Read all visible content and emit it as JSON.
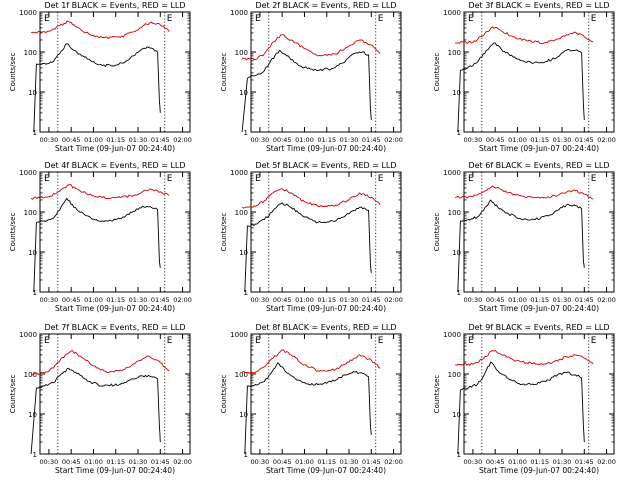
{
  "chart_data": [
    {
      "type": "line",
      "title": "Det 1f BLACK = Events, RED = LLD",
      "xlabel": "Start Time (09-Jun-07 00:24:40)",
      "ylabel": "Counts/sec",
      "xticks": [
        "00:30",
        "00:45",
        "01:00",
        "01:15",
        "01:30",
        "01:45",
        "02:00"
      ],
      "yticks": [
        "1",
        "10",
        "100",
        "1000"
      ],
      "ylim": [
        1,
        1000
      ],
      "yscale": "log",
      "markers": [
        "E",
        "E"
      ],
      "vlines": [
        "00:36",
        "01:48"
      ],
      "series": [
        {
          "name": "Events",
          "color": "#000000",
          "x": [
            0.33,
            0.36,
            0.45,
            0.55,
            0.62,
            0.7,
            0.78,
            0.9,
            1.05,
            1.2,
            1.35,
            1.45,
            1.55,
            1.62,
            1.67,
            1.72,
            1.74,
            1.75
          ],
          "y": [
            1,
            50,
            52,
            58,
            90,
            160,
            110,
            75,
            48,
            45,
            55,
            80,
            120,
            130,
            120,
            100,
            6,
            3
          ]
        },
        {
          "name": "LLD",
          "color": "#d00000",
          "x": [
            0.3,
            0.5,
            0.62,
            0.72,
            0.8,
            0.95,
            1.1,
            1.3,
            1.45,
            1.55,
            1.65,
            1.75,
            1.8,
            1.85
          ],
          "y": [
            300,
            330,
            450,
            580,
            430,
            280,
            230,
            230,
            320,
            440,
            560,
            480,
            400,
            320
          ]
        }
      ]
    },
    {
      "type": "line",
      "title": "Det 2f BLACK = Events, RED = LLD",
      "xlabel": "Start Time (09-Jun-07 00:24:40)",
      "ylabel": "Counts/sec",
      "xticks": [
        "00:30",
        "00:45",
        "01:00",
        "01:15",
        "01:30",
        "01:45",
        "02:00"
      ],
      "yticks": [
        "1",
        "10",
        "100",
        "1000"
      ],
      "ylim": [
        1,
        1000
      ],
      "yscale": "log",
      "markers": [
        "E",
        "E"
      ],
      "vlines": [
        "00:36",
        "01:48"
      ],
      "series": [
        {
          "name": "Events",
          "color": "#000000",
          "x": [
            0.3,
            0.36,
            0.45,
            0.55,
            0.62,
            0.72,
            0.8,
            0.95,
            1.1,
            1.3,
            1.45,
            1.55,
            1.65,
            1.72,
            1.74,
            1.75
          ],
          "y": [
            1,
            22,
            26,
            34,
            60,
            110,
            80,
            45,
            35,
            38,
            55,
            90,
            100,
            85,
            4,
            2
          ]
        },
        {
          "name": "LLD",
          "color": "#d00000",
          "x": [
            0.3,
            0.45,
            0.55,
            0.65,
            0.75,
            0.85,
            1.0,
            1.15,
            1.35,
            1.5,
            1.62,
            1.75,
            1.85
          ],
          "y": [
            70,
            65,
            90,
            180,
            270,
            200,
            120,
            80,
            90,
            140,
            200,
            150,
            90
          ]
        }
      ]
    },
    {
      "type": "line",
      "title": "Det 3f BLACK = Events, RED = LLD",
      "xlabel": "Start Time (09-Jun-07 00:24:40)",
      "ylabel": "Counts/sec",
      "xticks": [
        "00:30",
        "00:45",
        "01:00",
        "01:15",
        "01:30",
        "01:45",
        "02:00"
      ],
      "yticks": [
        "1",
        "10",
        "100",
        "1000"
      ],
      "ylim": [
        1,
        1000
      ],
      "yscale": "log",
      "markers": [
        "E",
        "E"
      ],
      "vlines": [
        "00:36",
        "01:48"
      ],
      "series": [
        {
          "name": "Events",
          "color": "#000000",
          "x": [
            0.33,
            0.36,
            0.45,
            0.55,
            0.65,
            0.75,
            0.82,
            0.95,
            1.1,
            1.3,
            1.45,
            1.55,
            1.65,
            1.72,
            1.74,
            1.75
          ],
          "y": [
            1,
            35,
            42,
            55,
            110,
            170,
            115,
            75,
            55,
            55,
            75,
            110,
            110,
            95,
            5,
            2
          ]
        },
        {
          "name": "LLD",
          "color": "#d00000",
          "x": [
            0.3,
            0.5,
            0.62,
            0.72,
            0.8,
            0.95,
            1.1,
            1.3,
            1.45,
            1.55,
            1.65,
            1.75,
            1.85
          ],
          "y": [
            170,
            175,
            260,
            430,
            360,
            240,
            190,
            170,
            210,
            270,
            310,
            240,
            180
          ]
        }
      ]
    },
    {
      "type": "line",
      "title": "Det 4f BLACK = Events, RED = LLD",
      "xlabel": "Start Time (09-Jun-07 00:24:40)",
      "ylabel": "Counts/sec",
      "xticks": [
        "00:30",
        "00:45",
        "01:00",
        "01:15",
        "01:30",
        "01:45",
        "02:00"
      ],
      "yticks": [
        "1",
        "10",
        "100",
        "1000"
      ],
      "ylim": [
        1,
        1000
      ],
      "yscale": "log",
      "markers": [
        "E",
        "E"
      ],
      "vlines": [
        "00:36",
        "01:48"
      ],
      "series": [
        {
          "name": "Events",
          "color": "#000000",
          "x": [
            0.33,
            0.36,
            0.45,
            0.55,
            0.62,
            0.7,
            0.78,
            0.9,
            1.05,
            1.2,
            1.35,
            1.45,
            1.55,
            1.65,
            1.72,
            1.74,
            1.75
          ],
          "y": [
            1,
            55,
            60,
            70,
            110,
            220,
            130,
            85,
            60,
            60,
            75,
            105,
            140,
            130,
            115,
            6,
            4
          ]
        },
        {
          "name": "LLD",
          "color": "#d00000",
          "x": [
            0.3,
            0.5,
            0.62,
            0.72,
            0.8,
            0.95,
            1.1,
            1.3,
            1.45,
            1.55,
            1.65,
            1.75,
            1.85
          ],
          "y": [
            220,
            240,
            330,
            480,
            390,
            270,
            230,
            230,
            260,
            320,
            370,
            320,
            260
          ]
        }
      ]
    },
    {
      "type": "line",
      "title": "Det 5f BLACK = Events, RED = LLD",
      "xlabel": "Start Time (09-Jun-07 00:24:40)",
      "ylabel": "Counts/sec",
      "xticks": [
        "00:30",
        "00:45",
        "01:00",
        "01:15",
        "01:30",
        "01:45",
        "02:00"
      ],
      "yticks": [
        "1",
        "10",
        "100",
        "1000"
      ],
      "ylim": [
        1,
        1000
      ],
      "yscale": "log",
      "markers": [
        "E",
        "E"
      ],
      "vlines": [
        "00:36",
        "01:48"
      ],
      "series": [
        {
          "name": "Events",
          "color": "#000000",
          "x": [
            0.33,
            0.36,
            0.45,
            0.55,
            0.65,
            0.75,
            0.85,
            1.0,
            1.15,
            1.35,
            1.5,
            1.62,
            1.72,
            1.74,
            1.75
          ],
          "y": [
            1,
            45,
            50,
            65,
            110,
            170,
            130,
            75,
            55,
            60,
            90,
            130,
            110,
            5,
            3
          ]
        },
        {
          "name": "LLD",
          "color": "#d00000",
          "x": [
            0.3,
            0.45,
            0.55,
            0.65,
            0.75,
            0.85,
            1.0,
            1.15,
            1.35,
            1.5,
            1.62,
            1.75,
            1.85
          ],
          "y": [
            130,
            140,
            190,
            300,
            380,
            300,
            180,
            140,
            150,
            200,
            300,
            230,
            150
          ]
        }
      ]
    },
    {
      "type": "line",
      "title": "Det 6f BLACK = Events, RED = LLD",
      "xlabel": "Start Time (09-Jun-07 00:24:40)",
      "ylabel": "Counts/sec",
      "xticks": [
        "00:30",
        "00:45",
        "01:00",
        "01:15",
        "01:30",
        "01:45",
        "02:00"
      ],
      "yticks": [
        "1",
        "10",
        "100",
        "1000"
      ],
      "ylim": [
        1,
        1000
      ],
      "yscale": "log",
      "markers": [
        "E",
        "E"
      ],
      "vlines": [
        "00:36",
        "01:48"
      ],
      "series": [
        {
          "name": "Events",
          "color": "#000000",
          "x": [
            0.33,
            0.36,
            0.45,
            0.55,
            0.62,
            0.7,
            0.78,
            0.9,
            1.05,
            1.2,
            1.35,
            1.45,
            1.55,
            1.65,
            1.72,
            1.74,
            1.75
          ],
          "y": [
            1,
            60,
            65,
            75,
            110,
            200,
            130,
            90,
            65,
            65,
            80,
            110,
            150,
            145,
            120,
            6,
            4
          ]
        },
        {
          "name": "LLD",
          "color": "#d00000",
          "x": [
            0.3,
            0.5,
            0.62,
            0.72,
            0.8,
            0.95,
            1.1,
            1.3,
            1.45,
            1.55,
            1.65,
            1.75,
            1.85
          ],
          "y": [
            230,
            240,
            320,
            450,
            380,
            270,
            230,
            230,
            260,
            310,
            340,
            280,
            210
          ]
        }
      ]
    },
    {
      "type": "line",
      "title": "Det 7f BLACK = Events, RED = LLD",
      "xlabel": "Start Time (09-Jun-07 00:24:40)",
      "ylabel": "Counts/sec",
      "xticks": [
        "00:30",
        "00:45",
        "01:00",
        "01:15",
        "01:30",
        "01:45",
        "02:00"
      ],
      "yticks": [
        "1",
        "10",
        "100",
        "1000"
      ],
      "ylim": [
        1,
        1000
      ],
      "yscale": "log",
      "markers": [
        "E",
        "E"
      ],
      "vlines": [
        "00:36",
        "01:48"
      ],
      "series": [
        {
          "name": "Events",
          "color": "#000000",
          "x": [
            0.3,
            0.36,
            0.45,
            0.55,
            0.62,
            0.72,
            0.8,
            0.95,
            1.1,
            1.3,
            1.45,
            1.55,
            1.65,
            1.72,
            1.74,
            1.75
          ],
          "y": [
            1,
            45,
            50,
            60,
            90,
            140,
            110,
            65,
            50,
            55,
            75,
            90,
            85,
            75,
            5,
            2
          ]
        },
        {
          "name": "LLD",
          "color": "#d00000",
          "x": [
            0.3,
            0.45,
            0.55,
            0.65,
            0.75,
            0.85,
            1.0,
            1.15,
            1.35,
            1.5,
            1.6,
            1.72,
            1.85
          ],
          "y": [
            100,
            105,
            140,
            260,
            380,
            280,
            160,
            110,
            130,
            210,
            280,
            220,
            120
          ]
        }
      ]
    },
    {
      "type": "line",
      "title": "Det 8f BLACK = Events, RED = LLD",
      "xlabel": "Start Time (09-Jun-07 00:24:40)",
      "ylabel": "Counts/sec",
      "xticks": [
        "00:30",
        "00:45",
        "01:00",
        "01:15",
        "01:30",
        "01:45",
        "02:00"
      ],
      "yticks": [
        "1",
        "10",
        "100",
        "1000"
      ],
      "ylim": [
        1,
        1000
      ],
      "yscale": "log",
      "markers": [
        "E",
        "E"
      ],
      "vlines": [
        "00:36",
        "01:48"
      ],
      "series": [
        {
          "name": "Events",
          "color": "#000000",
          "x": [
            0.33,
            0.36,
            0.45,
            0.55,
            0.62,
            0.7,
            0.78,
            0.9,
            1.05,
            1.2,
            1.35,
            1.45,
            1.55,
            1.65,
            1.72,
            1.74,
            1.75
          ],
          "y": [
            1,
            50,
            55,
            65,
            100,
            190,
            120,
            75,
            55,
            55,
            70,
            95,
            115,
            105,
            85,
            5,
            3
          ]
        },
        {
          "name": "LLD",
          "color": "#d00000",
          "x": [
            0.3,
            0.45,
            0.55,
            0.65,
            0.75,
            0.85,
            1.0,
            1.15,
            1.35,
            1.5,
            1.62,
            1.75,
            1.85
          ],
          "y": [
            110,
            110,
            150,
            250,
            400,
            300,
            170,
            120,
            130,
            200,
            300,
            220,
            140
          ]
        }
      ]
    },
    {
      "type": "line",
      "title": "Det 9f BLACK = Events, RED = LLD",
      "xlabel": "Start Time (09-Jun-07 00:24:40)",
      "ylabel": "Counts/sec",
      "xticks": [
        "00:30",
        "00:45",
        "01:00",
        "01:15",
        "01:30",
        "01:45",
        "02:00"
      ],
      "yticks": [
        "1",
        "10",
        "100",
        "1000"
      ],
      "ylim": [
        1,
        1000
      ],
      "yscale": "log",
      "markers": [
        "E",
        "E"
      ],
      "vlines": [
        "00:36",
        "01:48"
      ],
      "series": [
        {
          "name": "Events",
          "color": "#000000",
          "x": [
            0.33,
            0.36,
            0.45,
            0.55,
            0.62,
            0.7,
            0.78,
            0.9,
            1.05,
            1.2,
            1.35,
            1.45,
            1.55,
            1.65,
            1.72,
            1.74,
            1.75
          ],
          "y": [
            1,
            40,
            45,
            55,
            90,
            200,
            120,
            75,
            55,
            55,
            70,
            95,
            110,
            95,
            80,
            5,
            2
          ]
        },
        {
          "name": "LLD",
          "color": "#d00000",
          "x": [
            0.3,
            0.5,
            0.62,
            0.72,
            0.8,
            0.95,
            1.1,
            1.3,
            1.45,
            1.55,
            1.65,
            1.75,
            1.85
          ],
          "y": [
            170,
            175,
            240,
            390,
            330,
            230,
            190,
            180,
            210,
            270,
            300,
            250,
            180
          ]
        }
      ]
    }
  ]
}
